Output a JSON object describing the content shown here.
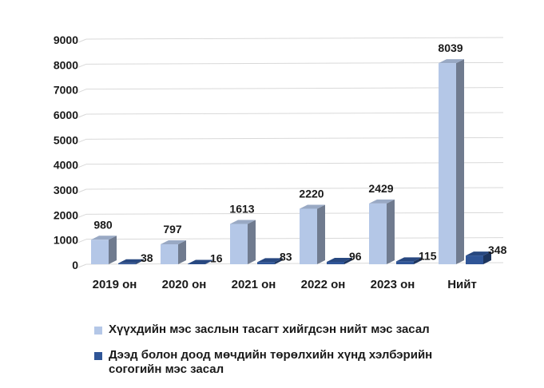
{
  "chart_data": {
    "type": "bar",
    "title": "",
    "xlabel": "",
    "ylabel": "",
    "ylim": [
      0,
      9000
    ],
    "yticks": [
      0,
      1000,
      2000,
      3000,
      4000,
      5000,
      6000,
      7000,
      8000,
      9000
    ],
    "grid": true,
    "three_d": true,
    "legend_position": "bottom",
    "categories": [
      "2019 он",
      "2020 он",
      "2021 он",
      "2022 он",
      "2023 он",
      "Нийт"
    ],
    "series": [
      {
        "name": "Хүүхдийн мэс заслын тасагт хийгдсэн нийт мэс засал",
        "color": "#b4c7e7",
        "values": [
          980,
          797,
          1613,
          2220,
          2429,
          8039
        ]
      },
      {
        "name": "Дээд болон доод мөчдийн төрөлхийн хүнд хэлбэрийн согогийн мэс засал",
        "color": "#2f5597",
        "values": [
          38,
          16,
          83,
          96,
          115,
          348
        ]
      }
    ]
  }
}
